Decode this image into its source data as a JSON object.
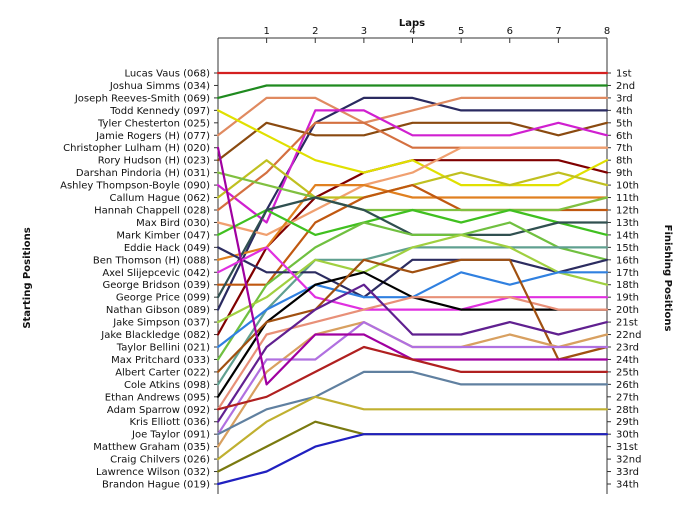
{
  "chart_data": {
    "type": "line",
    "title": "",
    "xlabel": "Laps",
    "ylabel": "Starting Positions",
    "ylabel_right": "Finishing Positions",
    "x": [
      0,
      1,
      2,
      3,
      4,
      5,
      6,
      7,
      8
    ],
    "xlim": [
      0,
      8
    ],
    "ylim": [
      1,
      34
    ],
    "y_inverted": true,
    "grid": false,
    "x_tick_labels": [
      "1",
      "2",
      "3",
      "4",
      "5",
      "6",
      "7",
      "8"
    ],
    "start_labels": [
      "Lucas Vaus (068)",
      "Joshua Simms (034)",
      "Joseph Reeves-Smith (069)",
      "Todd Kennedy (097)",
      "Tyler Chesterton (025)",
      "Jamie Rogers (H) (077)",
      "Christopher Lulham (H) (020)",
      "Rory Hudson (H) (023)",
      "Darshan Pindoria (H) (031)",
      "Ashley Thompson-Boyle (090)",
      "Callum Hague (062)",
      "Hannah Chappell (028)",
      "Max Bird (030)",
      "Mark Kimber (047)",
      "Eddie Hack (049)",
      "Ben Thomson (H) (088)",
      "Axel Slijepcevic (042)",
      "George Bridson (039)",
      "George Price (099)",
      "Nathan Gibson (089)",
      "Jake Simpson (037)",
      "Jake Blackledge (082)",
      "Taylor Bellini (021)",
      "Max Pritchard (033)",
      "Albert Carter (022)",
      "Cole Atkins (098)",
      "Ethan Andrews (095)",
      "Adam Sparrow (092)",
      "Kris Elliott (036)",
      "Joe Taylor (091)",
      "Matthew Graham (035)",
      "Craig Chilvers (026)",
      "Lawrence Wilson (032)",
      "Brandon Hague (019)"
    ],
    "finish_labels": [
      "1st",
      "2nd",
      "3rd",
      "4th",
      "5th",
      "6th",
      "7th",
      "8th",
      "9th",
      "10th",
      "11th",
      "12th",
      "13th",
      "14th",
      "15th",
      "16th",
      "17th",
      "18th",
      "19th",
      "20th",
      "21st",
      "22nd",
      "23rd",
      "24th",
      "25th",
      "26th",
      "27th",
      "28th",
      "29th",
      "30th",
      "31st",
      "32nd",
      "33rd",
      "34th"
    ],
    "series": [
      {
        "values": [
          1,
          1,
          1,
          1,
          1,
          1,
          1,
          1,
          1
        ],
        "color": "#d42020"
      },
      {
        "values": [
          3,
          2,
          2,
          2,
          2,
          2,
          2,
          2,
          2
        ],
        "color": "#1f8a1f"
      },
      {
        "values": [
          20,
          12,
          5,
          3,
          3,
          4,
          4,
          4,
          4
        ],
        "color": "#2a2a60"
      },
      {
        "values": [
          6,
          3,
          3,
          5,
          4,
          3,
          3,
          3,
          3
        ],
        "color": "#e08a60"
      },
      {
        "values": [
          8,
          5,
          6,
          6,
          5,
          5,
          5,
          6,
          5
        ],
        "color": "#8a4a10"
      },
      {
        "values": [
          10,
          13,
          4,
          4,
          6,
          6,
          6,
          5,
          6
        ],
        "color": "#d020d0"
      },
      {
        "values": [
          12,
          9,
          5,
          5,
          7,
          7,
          7,
          7,
          7
        ],
        "color": "#d47040"
      },
      {
        "values": [
          22,
          15,
          11,
          9,
          8,
          8,
          8,
          8,
          9
        ],
        "color": "#800000"
      },
      {
        "values": [
          4,
          6,
          8,
          9,
          8,
          10,
          10,
          10,
          8
        ],
        "color": "#e0e000"
      },
      {
        "values": [
          13,
          14,
          12,
          10,
          9,
          7,
          7,
          7,
          7
        ],
        "color": "#f0a070"
      },
      {
        "values": [
          11,
          8,
          11,
          11,
          10,
          9,
          10,
          9,
          10
        ],
        "color": "#c0c020"
      },
      {
        "values": [
          16,
          15,
          10,
          10,
          11,
          11,
          11,
          11,
          11
        ],
        "color": "#e08020"
      },
      {
        "values": [
          18,
          18,
          13,
          11,
          10,
          12,
          12,
          12,
          12
        ],
        "color": "#c05810"
      },
      {
        "values": [
          9,
          10,
          11,
          12,
          12,
          12,
          12,
          12,
          11
        ],
        "color": "#80c040"
      },
      {
        "values": [
          14,
          12,
          14,
          13,
          12,
          13,
          12,
          13,
          14
        ],
        "color": "#40c020"
      },
      {
        "values": [
          19,
          12,
          11,
          12,
          14,
          14,
          14,
          13,
          13
        ],
        "color": "#305050"
      },
      {
        "values": [
          24,
          18,
          15,
          13,
          14,
          14,
          13,
          15,
          16
        ],
        "color": "#70c040"
      },
      {
        "values": [
          26,
          20,
          16,
          16,
          15,
          15,
          15,
          15,
          15
        ],
        "color": "#60a090"
      },
      {
        "values": [
          15,
          17,
          17,
          19,
          16,
          16,
          16,
          17,
          16
        ],
        "color": "#2c2c60"
      },
      {
        "values": [
          21,
          19,
          16,
          17,
          15,
          14,
          15,
          17,
          18
        ],
        "color": "#a0d040"
      },
      {
        "values": [
          23,
          20,
          18,
          19,
          19,
          17,
          18,
          17,
          17
        ],
        "color": "#3080e0"
      },
      {
        "values": [
          17,
          15,
          19,
          20,
          20,
          20,
          19,
          19,
          19
        ],
        "color": "#e030e0"
      },
      {
        "values": [
          27,
          21,
          18,
          17,
          19,
          20,
          20,
          20,
          20
        ],
        "color": "#000000"
      },
      {
        "values": [
          28,
          22,
          21,
          20,
          19,
          19,
          19,
          20,
          20
        ],
        "color": "#e89078"
      },
      {
        "values": [
          25,
          21,
          20,
          16,
          17,
          16,
          16,
          24,
          23
        ],
        "color": "#a05010"
      },
      {
        "values": [
          29,
          23,
          20,
          18,
          22,
          22,
          21,
          22,
          21
        ],
        "color": "#602090"
      },
      {
        "values": [
          31,
          25,
          22,
          21,
          23,
          23,
          22,
          23,
          22
        ],
        "color": "#d8a060"
      },
      {
        "values": [
          30,
          24,
          24,
          21,
          23,
          23,
          23,
          23,
          23
        ],
        "color": "#b070e0"
      },
      {
        "values": [
          7,
          26,
          22,
          22,
          24,
          24,
          24,
          24,
          24
        ],
        "color": "#a000a0"
      },
      {
        "values": [
          28,
          27,
          25,
          23,
          24,
          25,
          25,
          25,
          25
        ],
        "color": "#b02020"
      },
      {
        "values": [
          30,
          28,
          27,
          25,
          25,
          26,
          26,
          26,
          26
        ],
        "color": "#6080a0"
      },
      {
        "values": [
          32,
          29,
          27,
          28,
          28,
          28,
          28,
          28,
          28
        ],
        "color": "#c0b030"
      },
      {
        "values": [
          33,
          31,
          29,
          30,
          30,
          30,
          30,
          30,
          30
        ],
        "color": "#7a7a10"
      },
      {
        "values": [
          34,
          33,
          31,
          30,
          30,
          30,
          30,
          30,
          30
        ],
        "color": "#2020c0"
      }
    ]
  }
}
